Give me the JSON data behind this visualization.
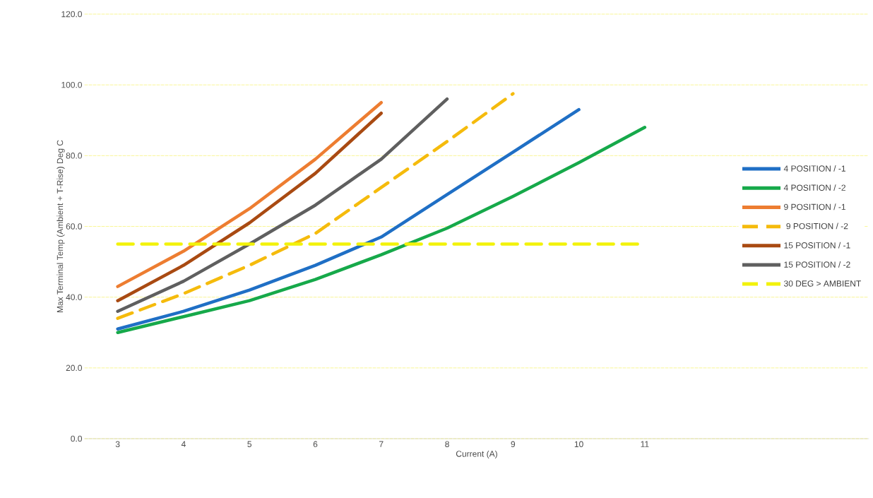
{
  "chart_data": {
    "type": "line",
    "xlabel": "Current (A)",
    "ylabel": "Max Terminal Temp  (Ambient + T-Rise) Deg C",
    "categories": [
      "3",
      "4",
      "5",
      "6",
      "7",
      "8",
      "9",
      "10",
      "11"
    ],
    "ylim": [
      0,
      120
    ],
    "yticks": [
      {
        "value": 0,
        "label": "0.0"
      },
      {
        "value": 20,
        "label": "20.0"
      },
      {
        "value": 40,
        "label": "40.0"
      },
      {
        "value": 60,
        "label": "60.0"
      },
      {
        "value": 80,
        "label": "80.0"
      },
      {
        "value": 100,
        "label": "100.0"
      },
      {
        "value": 120,
        "label": "120.0"
      }
    ],
    "grid": "y",
    "legend": "right",
    "marker": "none",
    "series": [
      {
        "name": "4 POSITION / -1",
        "color": "#1f6fc5",
        "line_style": "solid",
        "values": [
          31,
          36,
          42,
          49,
          57,
          69,
          81,
          93,
          null
        ]
      },
      {
        "name": "4 POSITION / -2",
        "color": "#16a94a",
        "line_style": "solid",
        "values": [
          30,
          34.5,
          39,
          45,
          52,
          59.5,
          68.5,
          78,
          88
        ]
      },
      {
        "name": "9 POSITION / -1",
        "color": "#ed7d31",
        "line_style": "solid",
        "values": [
          43,
          53,
          65,
          79,
          95,
          null,
          null,
          null,
          null
        ]
      },
      {
        "name": " 9 POSITION / -2",
        "color": "#f5bb0c",
        "line_style": "dashed",
        "values": [
          34,
          41,
          49,
          58,
          71,
          84,
          97.5,
          null,
          null
        ]
      },
      {
        "name": "15 POSITION / -1",
        "color": "#a94a12",
        "line_style": "solid",
        "values": [
          39,
          49,
          61,
          75,
          92,
          null,
          null,
          null,
          null
        ]
      },
      {
        "name": "15 POSITION / -2",
        "color": "#5f5f5f",
        "line_style": "solid",
        "values": [
          36,
          44.5,
          55,
          66,
          79,
          96,
          null,
          null,
          null
        ]
      },
      {
        "name": "30 DEG > AMBIENT",
        "color": "#f2f20a",
        "line_style": "dashed",
        "values": [
          55,
          55,
          55,
          55,
          55,
          55,
          55,
          55,
          55
        ]
      }
    ]
  }
}
